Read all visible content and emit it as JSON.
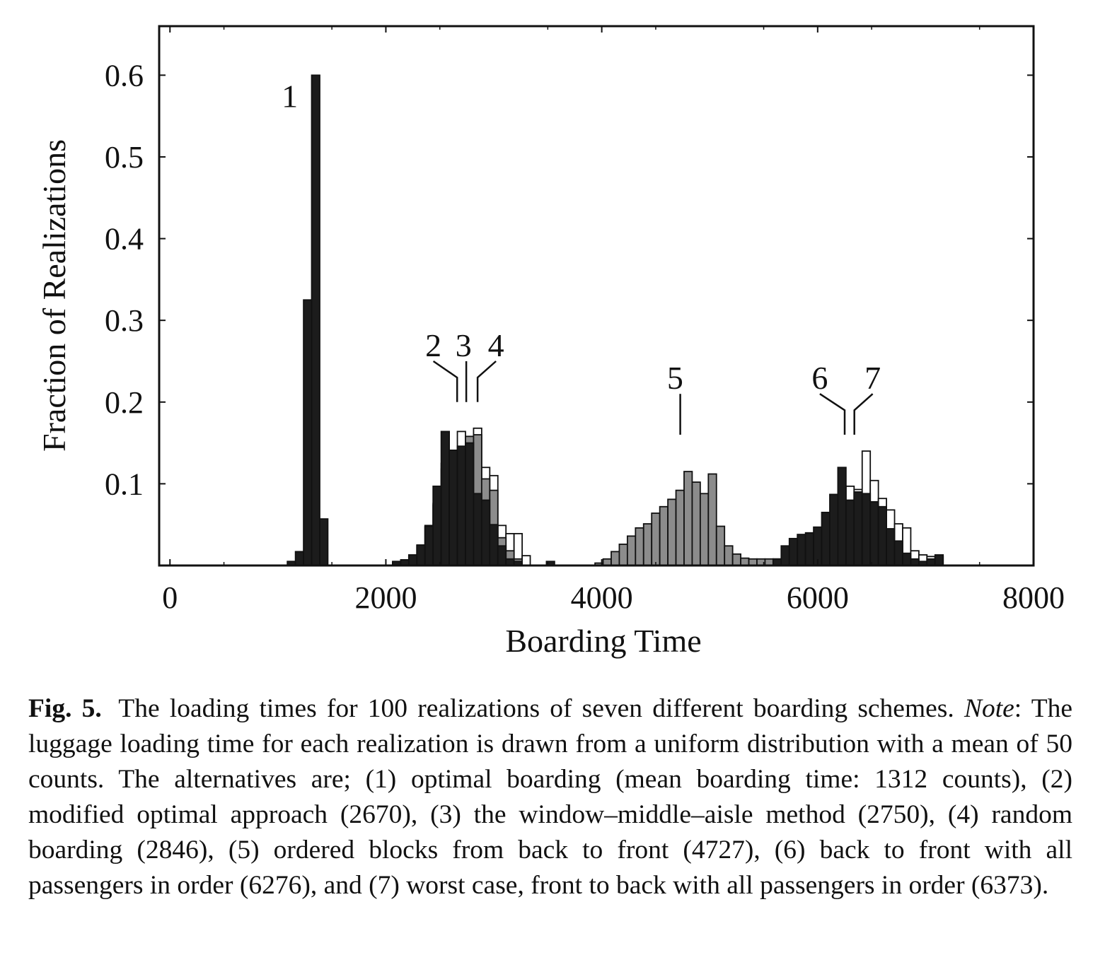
{
  "chart_data": {
    "type": "bar",
    "xlabel": "Boarding Time",
    "ylabel": "Fraction of Realizations",
    "xlim": [
      -100,
      8000
    ],
    "ylim": [
      0,
      0.66
    ],
    "xticks": [
      0,
      2000,
      4000,
      6000,
      8000
    ],
    "xtick_labels": [
      "0",
      "2000",
      "4000",
      "6000",
      "8000"
    ],
    "yticks": [
      0.1,
      0.2,
      0.3,
      0.4,
      0.5,
      0.6
    ],
    "ytick_labels": [
      "0.1",
      "0.2",
      "0.3",
      "0.4",
      "0.5",
      "0.6"
    ],
    "bin_width": 75,
    "series": [
      {
        "label": "1",
        "fill": "#1c1c1c",
        "x": [
          1125,
          1200,
          1275,
          1350,
          1425
        ],
        "values": [
          0.005,
          0.017,
          0.325,
          0.6,
          0.057
        ]
      },
      {
        "label": "5",
        "fill": "#8c8c8c",
        "x": [
          3975,
          4050,
          4125,
          4200,
          4275,
          4350,
          4425,
          4500,
          4575,
          4650,
          4725,
          4800,
          4875,
          4950,
          5025,
          5100,
          5175,
          5250,
          5325,
          5400,
          5475,
          5550,
          5625
        ],
        "values": [
          0.003,
          0.008,
          0.017,
          0.026,
          0.036,
          0.046,
          0.051,
          0.064,
          0.072,
          0.081,
          0.092,
          0.115,
          0.102,
          0.088,
          0.112,
          0.048,
          0.024,
          0.014,
          0.009,
          0.008,
          0.008,
          0.008,
          0.008
        ]
      },
      {
        "label": "4",
        "fill": "#ffffff",
        "x": [
          2100,
          2175,
          2250,
          2325,
          2400,
          2475,
          2550,
          2625,
          2700,
          2775,
          2850,
          2925,
          3000,
          3075,
          3150,
          3225,
          3300
        ],
        "values": [
          0.004,
          0.006,
          0.011,
          0.024,
          0.047,
          0.074,
          0.118,
          0.141,
          0.164,
          0.149,
          0.168,
          0.12,
          0.11,
          0.049,
          0.039,
          0.039,
          0.012
        ]
      },
      {
        "label": "3",
        "fill": "#8c8c8c",
        "x": [
          2100,
          2175,
          2250,
          2325,
          2400,
          2475,
          2550,
          2625,
          2700,
          2775,
          2850,
          2925,
          3000,
          3075,
          3150,
          3225
        ],
        "values": [
          0.004,
          0.006,
          0.012,
          0.025,
          0.049,
          0.076,
          0.125,
          0.133,
          0.138,
          0.158,
          0.16,
          0.106,
          0.092,
          0.034,
          0.018,
          0.008
        ]
      },
      {
        "label": "2",
        "fill": "#1c1c1c",
        "x": [
          2100,
          2175,
          2250,
          2325,
          2400,
          2475,
          2550,
          2625,
          2700,
          2775,
          2850,
          2925,
          3000,
          3075,
          3150,
          3225,
          3525
        ],
        "values": [
          0.005,
          0.007,
          0.013,
          0.025,
          0.048,
          0.097,
          0.164,
          0.141,
          0.146,
          0.15,
          0.088,
          0.08,
          0.05,
          0.024,
          0.008,
          0.005,
          0.005
        ]
      },
      {
        "label": "7",
        "fill": "#ffffff",
        "x": [
          5700,
          5775,
          5850,
          5925,
          6000,
          6075,
          6150,
          6225,
          6300,
          6375,
          6450,
          6525,
          6600,
          6675,
          6750,
          6825,
          6900,
          6975,
          7050,
          7125
        ],
        "values": [
          0.003,
          0.005,
          0.011,
          0.018,
          0.027,
          0.041,
          0.065,
          0.082,
          0.097,
          0.093,
          0.14,
          0.104,
          0.082,
          0.068,
          0.051,
          0.046,
          0.018,
          0.013,
          0.011,
          0.011
        ]
      },
      {
        "label": "6",
        "fill": "#1c1c1c",
        "x": [
          5625,
          5700,
          5775,
          5850,
          5925,
          6000,
          6075,
          6150,
          6225,
          6300,
          6375,
          6450,
          6525,
          6600,
          6675,
          6750,
          6825,
          6900,
          6975,
          7050,
          7125
        ],
        "values": [
          0.008,
          0.024,
          0.033,
          0.038,
          0.04,
          0.047,
          0.065,
          0.087,
          0.12,
          0.08,
          0.09,
          0.088,
          0.078,
          0.072,
          0.045,
          0.03,
          0.015,
          0.008,
          0.005,
          0.008,
          0.013
        ]
      }
    ],
    "annotations": [
      {
        "text": "1",
        "x": 1110,
        "y": 0.575
      },
      {
        "text": "2",
        "x": 2440,
        "y": 0.27
      },
      {
        "text": "3",
        "x": 2720,
        "y": 0.27
      },
      {
        "text": "4",
        "x": 3020,
        "y": 0.27
      },
      {
        "text": "5",
        "x": 4680,
        "y": 0.23
      },
      {
        "text": "6",
        "x": 6020,
        "y": 0.23
      },
      {
        "text": "7",
        "x": 6510,
        "y": 0.23
      }
    ],
    "leader_lines": [
      {
        "points": [
          [
            2440,
            0.25
          ],
          [
            2660,
            0.23
          ],
          [
            2660,
            0.2
          ]
        ]
      },
      {
        "points": [
          [
            2745,
            0.25
          ],
          [
            2745,
            0.2
          ]
        ]
      },
      {
        "points": [
          [
            3020,
            0.25
          ],
          [
            2850,
            0.23
          ],
          [
            2850,
            0.2
          ]
        ]
      },
      {
        "points": [
          [
            4727,
            0.21
          ],
          [
            4727,
            0.16
          ]
        ]
      },
      {
        "points": [
          [
            6020,
            0.21
          ],
          [
            6250,
            0.19
          ],
          [
            6250,
            0.16
          ]
        ]
      },
      {
        "points": [
          [
            6510,
            0.21
          ],
          [
            6340,
            0.19
          ],
          [
            6340,
            0.16
          ]
        ]
      }
    ]
  },
  "caption": {
    "fig_label": "Fig. 5.",
    "title_text": "The loading times for 100 realizations of seven different boarding schemes.",
    "note_label": "Note",
    "note_text": ": The luggage loading time for each realization is drawn from a uniform distribution with a mean of 50 counts. The alternatives are; (1) optimal boarding (mean boarding time: 1312 counts), (2) modified optimal approach (2670), (3) the window–middle–aisle method (2750), (4) random boarding (2846), (5) ordered blocks from back to front (4727), (6) back to front with all passengers in order (6276), and (7) worst case, front to back with all passengers in order (6373)."
  }
}
